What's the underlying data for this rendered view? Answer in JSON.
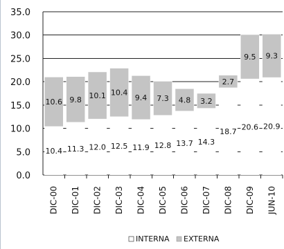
{
  "chart_data": {
    "type": "bar",
    "stacked": true,
    "categories": [
      "DIC-00",
      "DIC-01",
      "DIC-02",
      "DIC-03",
      "DIC-04",
      "DIC-05",
      "DIC-06",
      "DIC-07",
      "DIC-08",
      "DIC-09",
      "JUN-10"
    ],
    "series": [
      {
        "name": "INTERNA",
        "color": "#ffffff",
        "values": [
          10.4,
          11.3,
          12.0,
          12.5,
          11.9,
          12.8,
          13.7,
          14.3,
          18.7,
          20.6,
          20.9
        ],
        "labels": [
          "10.4",
          "11.3",
          "12.0",
          "12.5",
          "11.9",
          "12.8",
          "13.7",
          "14.3",
          "18.7",
          "20.6",
          "20.9"
        ]
      },
      {
        "name": "EXTERNA",
        "color": "#c4c4c4",
        "values": [
          10.6,
          9.8,
          10.1,
          10.4,
          9.4,
          7.3,
          4.8,
          3.2,
          2.7,
          9.5,
          9.3
        ],
        "labels": [
          "10.6",
          "9.8",
          "10.1",
          "10.4",
          "9.4",
          "7.3",
          "4.8",
          "3.2",
          "2.7",
          "9.5",
          "9.3"
        ]
      }
    ],
    "ylim": [
      0,
      35
    ],
    "yticks": [
      0,
      5,
      10,
      15,
      20,
      25,
      30,
      35
    ],
    "ytick_labels": [
      "0.0",
      "5.0",
      "10.0",
      "15.0",
      "20.0",
      "25.0",
      "30.0",
      "35.0"
    ],
    "grid": true,
    "legend_position": "bottom",
    "title": "",
    "xlabel": "",
    "ylabel": ""
  }
}
